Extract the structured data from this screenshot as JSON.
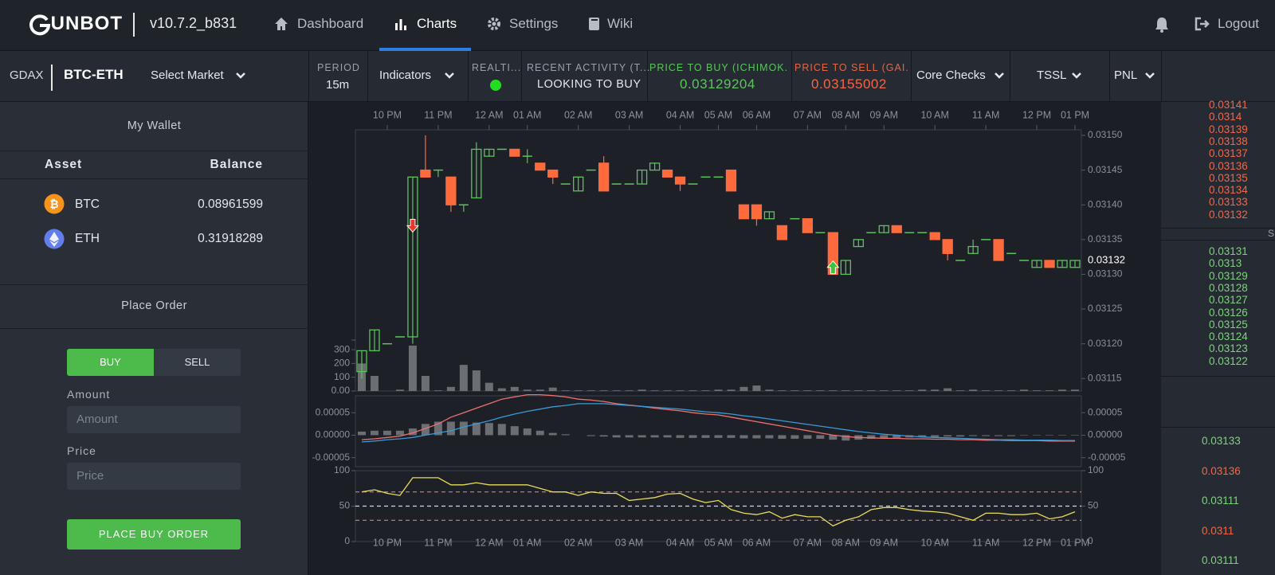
{
  "nav": {
    "brand": "GUNBOT",
    "version": "v10.7.2_b831",
    "items": [
      "Dashboard",
      "Charts",
      "Settings",
      "Wiki"
    ],
    "logout": "Logout"
  },
  "toolbar": {
    "exchange": "GDAX",
    "pair": "BTC-ETH",
    "select_market": "Select Market",
    "period_label": "PERIOD",
    "period": "15m",
    "indicators": "Indicators",
    "realtime_label": "REALTI...",
    "activity_label": "RECENT ACTIVITY (T...",
    "activity": "LOOKING TO BUY",
    "buy_label": "PRICE TO BUY (ICHIMOK...",
    "buy_price": "0.03129204",
    "sell_label": "PRICE TO SELL (GAI...",
    "sell_price": "0.03155002",
    "core_checks": "Core Checks",
    "tssl": "TSSL",
    "pnl": "PNL"
  },
  "wallet": {
    "title": "My Wallet",
    "headers": [
      "Asset",
      "Balance"
    ],
    "rows": [
      [
        "BTC",
        "0.08961599"
      ],
      [
        "ETH",
        "0.31918289"
      ]
    ]
  },
  "order": {
    "title": "Place Order",
    "tabs": [
      "BUY",
      "SELL"
    ],
    "amount_label": "Amount",
    "amount_placeholder": "Amount",
    "price_label": "Price",
    "price_placeholder": "Price",
    "button": "PLACE BUY ORDER"
  },
  "orderbook": {
    "asks": [
      "0.03141",
      "0.0314",
      "0.03139",
      "0.03138",
      "0.03137",
      "0.03136",
      "0.03135",
      "0.03134",
      "0.03133",
      "0.03132"
    ],
    "side_label": "S",
    "bids": [
      "0.03131",
      "0.0313",
      "0.03129",
      "0.03128",
      "0.03127",
      "0.03126",
      "0.03125",
      "0.03124",
      "0.03123",
      "0.03122"
    ],
    "trades": [
      {
        "price": "0.03133",
        "side": "buy"
      },
      {
        "price": "0.03136",
        "side": "sell"
      },
      {
        "price": "0.03111",
        "side": "buy"
      },
      {
        "price": "0.0311",
        "side": "sell"
      },
      {
        "price": "0.03111",
        "side": "buy"
      }
    ]
  },
  "chart_data": {
    "type": "candlestick",
    "up_color": "#5cc45c",
    "down_color": "#ff6a3d",
    "xlim": [
      -0.5,
      56.5
    ],
    "xticks": [
      {
        "value": 2,
        "label": "10 PM"
      },
      {
        "value": 6,
        "label": "11 PM"
      },
      {
        "value": 10,
        "label": "12 AM"
      },
      {
        "value": 13,
        "label": "01 AM"
      },
      {
        "value": 17,
        "label": "02 AM"
      },
      {
        "value": 21,
        "label": "03 AM"
      },
      {
        "value": 25,
        "label": "04 AM"
      },
      {
        "value": 28,
        "label": "05 AM"
      },
      {
        "value": 31,
        "label": "06 AM"
      },
      {
        "value": 35,
        "label": "07 AM"
      },
      {
        "value": 38,
        "label": "08 AM"
      },
      {
        "value": 41,
        "label": "09 AM"
      },
      {
        "value": 45,
        "label": "10 AM"
      },
      {
        "value": 49,
        "label": "11 AM"
      },
      {
        "value": 53,
        "label": "12 PM"
      },
      {
        "value": 56,
        "label": "01 PM"
      }
    ],
    "ylim": [
      0.031132,
      0.031508
    ],
    "yticks": [
      0.03115,
      {
        "value": 0.0312,
        "label": "0.03120"
      },
      0.03125,
      {
        "value": 0.0313,
        "label": "0.03130"
      },
      0.03135,
      {
        "value": 0.0314,
        "label": "0.03140"
      },
      0.03145,
      {
        "value": 0.0315,
        "label": "0.03150"
      }
    ],
    "open": [
      0.03116,
      0.03119,
      0.0312,
      0.03121,
      0.03121,
      0.03145,
      0.03145,
      0.03144,
      0.0314,
      0.03141,
      0.03147,
      0.03148,
      0.03148,
      0.03147,
      0.03146,
      0.03145,
      0.03143,
      0.03142,
      0.03145,
      0.03146,
      0.03143,
      0.03143,
      0.03143,
      0.03145,
      0.03145,
      0.03144,
      0.03143,
      0.03144,
      0.03144,
      0.03145,
      0.0314,
      0.0314,
      0.03138,
      0.03137,
      0.03138,
      0.03138,
      0.03136,
      0.03136,
      0.0313,
      0.03134,
      0.03136,
      0.03136,
      0.03137,
      0.03136,
      0.03136,
      0.03136,
      0.03135,
      0.03132,
      0.03133,
      0.03135,
      0.03135,
      0.03133,
      0.03132,
      0.03131,
      0.03132,
      0.03131,
      0.03131
    ],
    "high": [
      0.03119,
      0.03122,
      0.0312,
      0.03121,
      0.03144,
      0.0315,
      0.03145,
      0.03144,
      0.0314,
      0.03149,
      0.03148,
      0.03148,
      0.03148,
      0.03148,
      0.03146,
      0.03145,
      0.03143,
      0.03144,
      0.03145,
      0.03147,
      0.03143,
      0.03143,
      0.03145,
      0.03146,
      0.03145,
      0.03144,
      0.03143,
      0.03144,
      0.03144,
      0.03145,
      0.0314,
      0.0314,
      0.03139,
      0.03137,
      0.03138,
      0.03138,
      0.03136,
      0.03136,
      0.03132,
      0.03135,
      0.03136,
      0.03137,
      0.03137,
      0.03136,
      0.03136,
      0.03136,
      0.03135,
      0.03132,
      0.03135,
      0.03135,
      0.03135,
      0.03133,
      0.03132,
      0.03132,
      0.03132,
      0.03132,
      0.03132
    ],
    "low": [
      0.03115,
      0.03119,
      0.0312,
      0.03121,
      0.0312,
      0.03144,
      0.03144,
      0.03139,
      0.03139,
      0.03141,
      0.03147,
      0.03148,
      0.03147,
      0.03146,
      0.03145,
      0.03143,
      0.03143,
      0.03142,
      0.03145,
      0.03142,
      0.03143,
      0.03143,
      0.03143,
      0.03145,
      0.03144,
      0.03142,
      0.03143,
      0.03144,
      0.03144,
      0.03142,
      0.03138,
      0.03137,
      0.03138,
      0.03135,
      0.03138,
      0.03136,
      0.03136,
      0.0313,
      0.0313,
      0.03134,
      0.03136,
      0.03136,
      0.03136,
      0.03136,
      0.03136,
      0.03135,
      0.03132,
      0.03132,
      0.03133,
      0.03135,
      0.03132,
      0.03133,
      0.03132,
      0.03131,
      0.03131,
      0.03131,
      0.03131
    ],
    "close": [
      0.03119,
      0.03122,
      0.0312,
      0.03121,
      0.03144,
      0.03144,
      0.03145,
      0.0314,
      0.0314,
      0.03148,
      0.03148,
      0.03148,
      0.03147,
      0.03147,
      0.03145,
      0.03144,
      0.03143,
      0.03144,
      0.03145,
      0.03142,
      0.03143,
      0.03143,
      0.03145,
      0.03146,
      0.03144,
      0.03143,
      0.03143,
      0.03144,
      0.03144,
      0.03142,
      0.03138,
      0.03138,
      0.03139,
      0.03135,
      0.03138,
      0.03136,
      0.03136,
      0.0313,
      0.03132,
      0.03135,
      0.03136,
      0.03137,
      0.03136,
      0.03136,
      0.03136,
      0.03135,
      0.03133,
      0.03132,
      0.03134,
      0.03135,
      0.03132,
      0.03133,
      0.03132,
      0.03132,
      0.03131,
      0.03132,
      0.03132
    ],
    "last_price": 0.03132,
    "sell_marker": {
      "x": 4,
      "y": 0.03137
    },
    "buy_marker": {
      "x": 37,
      "y": 0.03131
    },
    "volume": {
      "color": "#6b6e73",
      "ylim": [
        0,
        370
      ],
      "yticks": [
        {
          "value": 0,
          "label": "0.00"
        },
        100,
        200,
        300
      ],
      "values": [
        200,
        110,
        0,
        10,
        330,
        110,
        5,
        30,
        190,
        150,
        60,
        20,
        30,
        10,
        10,
        25,
        5,
        5,
        5,
        5,
        5,
        5,
        10,
        5,
        5,
        5,
        5,
        5,
        10,
        10,
        30,
        40,
        10,
        5,
        5,
        5,
        5,
        5,
        5,
        5,
        5,
        5,
        5,
        5,
        10,
        10,
        20,
        5,
        10,
        5,
        5,
        5,
        10,
        5,
        5,
        10,
        10
      ]
    },
    "macd": {
      "ylim": [
        -7e-05,
        8.75e-05
      ],
      "yticks": [
        -5e-05,
        {
          "value": 0,
          "label": "0.00000"
        },
        5e-05
      ],
      "lines": [
        {
          "color": "#f07070",
          "values": [
            -1e-05,
            -8e-06,
            -5e-06,
            -2e-06,
            5e-06,
            1.5e-05,
            2.5e-05,
            4e-05,
            5e-05,
            6e-05,
            7e-05,
            8e-05,
            8.5e-05,
            9e-05,
            9e-05,
            8.8e-05,
            8.5e-05,
            8e-05,
            7.8e-05,
            7.5e-05,
            7e-05,
            6.7e-05,
            6.4e-05,
            6e-05,
            5.7e-05,
            5.4e-05,
            5e-05,
            4.7e-05,
            4.5e-05,
            4e-05,
            3.5e-05,
            3e-05,
            2.5e-05,
            2e-05,
            1.5e-05,
            1e-05,
            5e-06,
            0,
            -3e-06,
            -5e-06,
            -6e-06,
            -7e-06,
            -7e-06,
            -8e-06,
            -8e-06,
            -9e-06,
            -9e-06,
            -1e-05,
            -1e-05,
            -1.1e-05,
            -1.1e-05,
            -1.2e-05,
            -1.2e-05,
            -1.2e-05,
            -1.3e-05,
            -1.3e-05,
            -1.3e-05
          ]
        },
        {
          "color": "#3a9ad9",
          "values": [
            -1.5e-05,
            -1.3e-05,
            -1e-05,
            -8e-06,
            -5e-06,
            0,
            5e-06,
            1e-05,
            1.8e-05,
            2.5e-05,
            3.2e-05,
            4e-05,
            4.7e-05,
            5.3e-05,
            5.8e-05,
            6.3e-05,
            6.6e-05,
            7e-05,
            7e-05,
            7e-05,
            6.8e-05,
            6.6e-05,
            6.4e-05,
            6.2e-05,
            6e-05,
            5.8e-05,
            5.5e-05,
            5.2e-05,
            5e-05,
            4.7e-05,
            4.3e-05,
            4e-05,
            3.6e-05,
            3.2e-05,
            2.8e-05,
            2.4e-05,
            2e-05,
            1.6e-05,
            1.2e-05,
            8e-06,
            5e-06,
            2e-06,
            0,
            -2e-06,
            -4e-06,
            -5e-06,
            -6e-06,
            -7e-06,
            -8e-06,
            -9e-06,
            -1e-05,
            -1e-05,
            -1.1e-05,
            -1.1e-05,
            -1.1e-05,
            -1.2e-05,
            -1.2e-05
          ]
        }
      ],
      "histogram": {
        "color": "#6b6e73",
        "values": [
          8e-06,
          1e-05,
          1e-05,
          1e-05,
          1.5e-05,
          2.5e-05,
          3e-05,
          3e-05,
          3e-05,
          2.8e-05,
          2.7e-05,
          2.5e-05,
          2e-05,
          1.5e-05,
          1e-05,
          5e-06,
          2e-06,
          0,
          -2e-06,
          -3e-06,
          -5e-06,
          -5e-06,
          -5e-06,
          -5e-06,
          -5e-06,
          -6e-06,
          -6e-06,
          -6e-06,
          -6e-06,
          -6e-06,
          -7e-06,
          -7e-06,
          -7e-06,
          -8e-06,
          -8e-06,
          -8e-06,
          -8e-06,
          -1e-05,
          -1.2e-05,
          -1e-05,
          -8e-06,
          -7e-06,
          -6e-06,
          -5e-06,
          -4e-06,
          -4e-06,
          -3e-06,
          -3e-06,
          -2e-06,
          -2e-06,
          -2e-06,
          -2e-06,
          -1e-06,
          -1e-06,
          -1e-06,
          -1e-06,
          -1e-06
        ]
      }
    },
    "rsi": {
      "color": "#e8dc5a",
      "ylim": [
        0,
        100
      ],
      "yticks": [
        0,
        50,
        100
      ],
      "levels": [
        {
          "value": 70,
          "color": "#e07a7a"
        },
        {
          "value": 50,
          "color": "#d8d8d8"
        },
        {
          "value": 30,
          "color": "#e07a7a"
        }
      ],
      "values": [
        70,
        73,
        68,
        65,
        90,
        90,
        90,
        80,
        80,
        83,
        80,
        80,
        80,
        80,
        75,
        70,
        70,
        65,
        70,
        68,
        68,
        58,
        60,
        62,
        67,
        68,
        60,
        55,
        58,
        45,
        40,
        38,
        42,
        33,
        38,
        35,
        35,
        22,
        30,
        35,
        45,
        48,
        48,
        45,
        43,
        42,
        40,
        35,
        30,
        40,
        40,
        38,
        38,
        40,
        32,
        35,
        42
      ]
    }
  }
}
